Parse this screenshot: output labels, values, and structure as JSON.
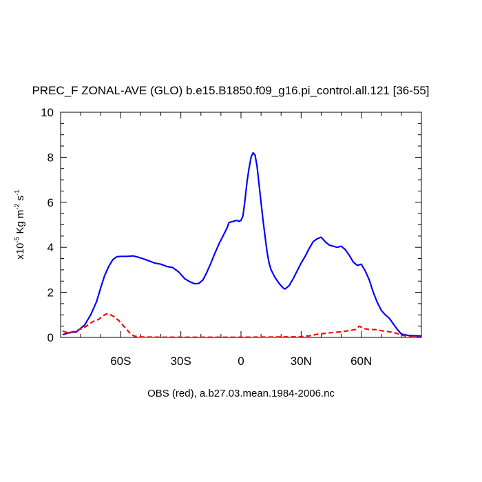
{
  "chart_data": {
    "type": "line",
    "title": "PREC_F ZONAL-AVE (GLO) b.e15.B1850.f09_g16.pi_control.all.121 [36-55]",
    "ylabel": {
      "prefix": "x10",
      "exp": "-5",
      "unit": " Kg m",
      "unit_exp": "-2",
      "s": " s",
      "s_exp": "-1"
    },
    "footer": "OBS (red), a.b27.03.mean.1984-2006.nc",
    "xlim": [
      -90,
      90
    ],
    "ylim": [
      0,
      10
    ],
    "xticks": [
      {
        "value": -60,
        "label": "60S"
      },
      {
        "value": -30,
        "label": "30S"
      },
      {
        "value": 0,
        "label": "0"
      },
      {
        "value": 30,
        "label": "30N"
      },
      {
        "value": 60,
        "label": "60N"
      }
    ],
    "yticks": [
      {
        "value": 0,
        "label": "0"
      },
      {
        "value": 2,
        "label": "2"
      },
      {
        "value": 4,
        "label": "4"
      },
      {
        "value": 6,
        "label": "6"
      },
      {
        "value": 8,
        "label": "8"
      },
      {
        "value": 10,
        "label": "10"
      }
    ],
    "series": [
      {
        "color": "#0000ff",
        "dash": "solid",
        "points": [
          [
            -89,
            0.12
          ],
          [
            -86,
            0.2
          ],
          [
            -82,
            0.25
          ],
          [
            -78,
            0.55
          ],
          [
            -75,
            1.0
          ],
          [
            -72,
            1.6
          ],
          [
            -70,
            2.2
          ],
          [
            -68,
            2.75
          ],
          [
            -66,
            3.15
          ],
          [
            -64,
            3.45
          ],
          [
            -62,
            3.58
          ],
          [
            -60,
            3.6
          ],
          [
            -57,
            3.6
          ],
          [
            -54,
            3.62
          ],
          [
            -52,
            3.58
          ],
          [
            -49,
            3.5
          ],
          [
            -46,
            3.4
          ],
          [
            -43,
            3.3
          ],
          [
            -40,
            3.25
          ],
          [
            -37,
            3.15
          ],
          [
            -34,
            3.1
          ],
          [
            -31,
            2.9
          ],
          [
            -28,
            2.6
          ],
          [
            -25,
            2.45
          ],
          [
            -23,
            2.38
          ],
          [
            -21,
            2.4
          ],
          [
            -19,
            2.55
          ],
          [
            -17,
            2.9
          ],
          [
            -15,
            3.3
          ],
          [
            -13,
            3.75
          ],
          [
            -11,
            4.15
          ],
          [
            -9,
            4.5
          ],
          [
            -7,
            4.85
          ],
          [
            -6,
            5.1
          ],
          [
            -4,
            5.15
          ],
          [
            -2,
            5.2
          ],
          [
            -1,
            5.15
          ],
          [
            0,
            5.2
          ],
          [
            1,
            5.4
          ],
          [
            2,
            6.1
          ],
          [
            3,
            6.9
          ],
          [
            4,
            7.5
          ],
          [
            5,
            8.0
          ],
          [
            6,
            8.2
          ],
          [
            7,
            8.1
          ],
          [
            8,
            7.6
          ],
          [
            9,
            6.8
          ],
          [
            10,
            6.0
          ],
          [
            11,
            5.2
          ],
          [
            12,
            4.5
          ],
          [
            13,
            3.8
          ],
          [
            14,
            3.3
          ],
          [
            15,
            3.0
          ],
          [
            17,
            2.65
          ],
          [
            19,
            2.4
          ],
          [
            21,
            2.2
          ],
          [
            22,
            2.15
          ],
          [
            24,
            2.3
          ],
          [
            26,
            2.6
          ],
          [
            28,
            2.95
          ],
          [
            30,
            3.3
          ],
          [
            32,
            3.6
          ],
          [
            34,
            3.95
          ],
          [
            36,
            4.25
          ],
          [
            38,
            4.38
          ],
          [
            40,
            4.45
          ],
          [
            42,
            4.25
          ],
          [
            44,
            4.1
          ],
          [
            46,
            4.05
          ],
          [
            48,
            4.0
          ],
          [
            50,
            4.05
          ],
          [
            52,
            3.9
          ],
          [
            54,
            3.65
          ],
          [
            56,
            3.35
          ],
          [
            58,
            3.2
          ],
          [
            60,
            3.25
          ],
          [
            62,
            2.95
          ],
          [
            64,
            2.55
          ],
          [
            66,
            2.0
          ],
          [
            68,
            1.55
          ],
          [
            70,
            1.2
          ],
          [
            72,
            1.0
          ],
          [
            74,
            0.85
          ],
          [
            76,
            0.6
          ],
          [
            78,
            0.35
          ],
          [
            80,
            0.15
          ],
          [
            84,
            0.08
          ],
          [
            90,
            0.06
          ]
        ]
      },
      {
        "color": "#ff0000",
        "dash": "dashed",
        "points": [
          [
            -89,
            0.28
          ],
          [
            -86,
            0.2
          ],
          [
            -82,
            0.3
          ],
          [
            -78,
            0.45
          ],
          [
            -74,
            0.7
          ],
          [
            -71,
            0.8
          ],
          [
            -69,
            0.95
          ],
          [
            -67,
            1.05
          ],
          [
            -65,
            1.0
          ],
          [
            -63,
            0.9
          ],
          [
            -61,
            0.75
          ],
          [
            -59,
            0.55
          ],
          [
            -57,
            0.35
          ],
          [
            -55,
            0.15
          ],
          [
            -53,
            0.05
          ],
          [
            -50,
            0.02
          ],
          [
            -40,
            0.01
          ],
          [
            -20,
            0.01
          ],
          [
            0,
            0.01
          ],
          [
            20,
            0.02
          ],
          [
            30,
            0.03
          ],
          [
            35,
            0.08
          ],
          [
            38,
            0.14
          ],
          [
            42,
            0.18
          ],
          [
            46,
            0.22
          ],
          [
            50,
            0.25
          ],
          [
            54,
            0.3
          ],
          [
            57,
            0.35
          ],
          [
            59,
            0.5
          ],
          [
            61,
            0.4
          ],
          [
            64,
            0.35
          ],
          [
            67,
            0.35
          ],
          [
            70,
            0.3
          ],
          [
            74,
            0.25
          ],
          [
            77,
            0.2
          ],
          [
            80,
            0.1
          ],
          [
            84,
            0.03
          ],
          [
            90,
            0.0
          ]
        ]
      }
    ]
  }
}
